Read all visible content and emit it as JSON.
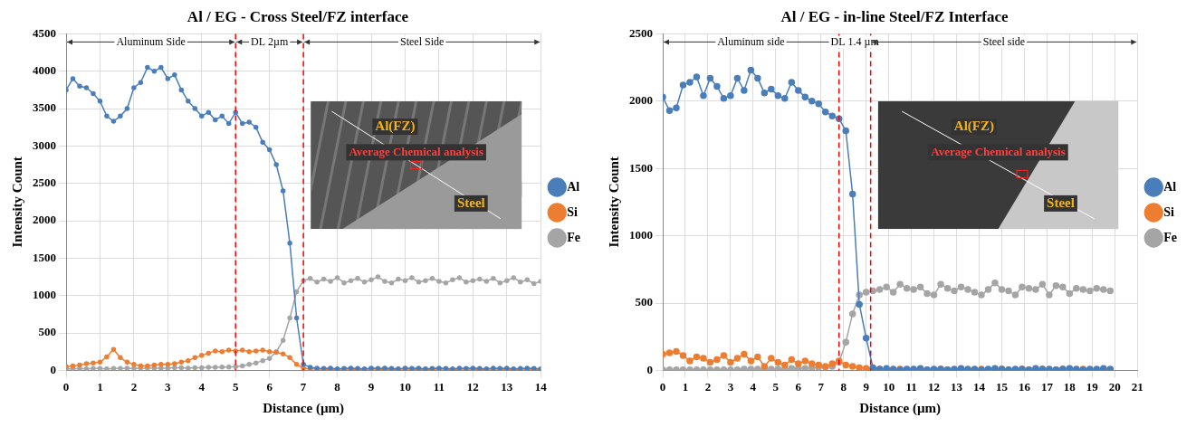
{
  "chart_data": [
    {
      "type": "line",
      "title": "Al / EG - Cross Steel/FZ interface",
      "x_label": "Distance (µm)",
      "y_label": "Intensity Count",
      "x": [
        0,
        0.2,
        0.4,
        0.6,
        0.8,
        1,
        1.2,
        1.4,
        1.6,
        1.8,
        2,
        2.2,
        2.4,
        2.6,
        2.8,
        3,
        3.2,
        3.4,
        3.6,
        3.8,
        4,
        4.2,
        4.4,
        4.6,
        4.8,
        5,
        5.2,
        5.4,
        5.6,
        5.8,
        6,
        6.2,
        6.4,
        6.6,
        6.8,
        7,
        7.2,
        7.4,
        7.6,
        7.8,
        8,
        8.2,
        8.4,
        8.6,
        8.8,
        9,
        9.2,
        9.4,
        9.6,
        9.8,
        10,
        10.2,
        10.4,
        10.6,
        10.8,
        11,
        11.2,
        11.4,
        11.6,
        11.8,
        12,
        12.2,
        12.4,
        12.6,
        12.8,
        13,
        13.2,
        13.4,
        13.6,
        13.8,
        14
      ],
      "series": [
        {
          "name": "Al",
          "color": "#4a7ebb",
          "marker": "circle",
          "values": [
            3750,
            3900,
            3800,
            3780,
            3700,
            3600,
            3400,
            3330,
            3400,
            3500,
            3780,
            3850,
            4050,
            4000,
            4050,
            3900,
            3950,
            3750,
            3600,
            3500,
            3400,
            3450,
            3350,
            3400,
            3300,
            3450,
            3300,
            3320,
            3250,
            3050,
            2950,
            2750,
            2400,
            1700,
            700,
            80,
            40,
            30,
            25,
            30,
            20,
            25,
            30,
            25,
            20,
            30,
            25,
            30,
            25,
            20,
            30,
            25,
            30,
            20,
            25,
            30,
            25,
            20,
            30,
            25,
            30,
            25,
            20,
            30,
            25,
            30,
            20,
            25,
            30,
            25,
            20
          ]
        },
        {
          "name": "Si",
          "color": "#ed7d31",
          "marker": "circle",
          "values": [
            50,
            60,
            70,
            90,
            100,
            110,
            180,
            280,
            170,
            110,
            80,
            60,
            60,
            70,
            80,
            80,
            90,
            110,
            130,
            170,
            200,
            230,
            260,
            250,
            270,
            260,
            270,
            250,
            260,
            270,
            250,
            240,
            220,
            170,
            80,
            30,
            20,
            20,
            15,
            10,
            15,
            20,
            15,
            10,
            15,
            20,
            15,
            15,
            10,
            15,
            20,
            15,
            10,
            15,
            15,
            20,
            15,
            10,
            15,
            20,
            15,
            10,
            15,
            20,
            15,
            10,
            15,
            15,
            20,
            10,
            15
          ]
        },
        {
          "name": "Fe",
          "color": "#a5a5a5",
          "marker": "circle",
          "values": [
            20,
            20,
            25,
            20,
            25,
            25,
            20,
            25,
            25,
            30,
            25,
            25,
            30,
            30,
            30,
            30,
            35,
            35,
            30,
            35,
            35,
            40,
            40,
            45,
            45,
            50,
            60,
            80,
            100,
            130,
            160,
            250,
            400,
            700,
            1050,
            1200,
            1230,
            1180,
            1220,
            1190,
            1240,
            1170,
            1200,
            1230,
            1180,
            1210,
            1250,
            1190,
            1170,
            1220,
            1200,
            1240,
            1180,
            1200,
            1230,
            1190,
            1170,
            1210,
            1240,
            1180,
            1200,
            1220,
            1190,
            1230,
            1170,
            1200,
            1240,
            1180,
            1210,
            1160,
            1190
          ]
        }
      ],
      "xlim": [
        0,
        14
      ],
      "xticks": [
        0,
        1,
        2,
        3,
        4,
        5,
        6,
        7,
        8,
        9,
        10,
        11,
        12,
        13,
        14
      ],
      "ylim": [
        0,
        4500
      ],
      "yticks": [
        0,
        500,
        1000,
        1500,
        2000,
        2500,
        3000,
        3500,
        4000,
        4500
      ],
      "grid": true,
      "legend": "right",
      "boundaries": [
        5,
        7
      ],
      "regions": [
        "Aluminum Side",
        "DL 2µm",
        "Steel Side"
      ],
      "inset_texts": [
        "Al(FZ)",
        "Average Chemical analysis",
        "Steel"
      ]
    },
    {
      "type": "line",
      "title": "Al / EG - in-line Steel/FZ Interface",
      "x_label": "Distance (µm)",
      "y_label": "Intensity Count",
      "x": [
        0,
        0.3,
        0.6,
        0.9,
        1.2,
        1.5,
        1.8,
        2.1,
        2.4,
        2.7,
        3,
        3.3,
        3.6,
        3.9,
        4.2,
        4.5,
        4.8,
        5.1,
        5.4,
        5.7,
        6,
        6.3,
        6.6,
        6.9,
        7.2,
        7.5,
        7.8,
        8.1,
        8.4,
        8.7,
        9,
        9.3,
        9.6,
        9.9,
        10.2,
        10.5,
        10.8,
        11.1,
        11.4,
        11.7,
        12,
        12.3,
        12.6,
        12.9,
        13.2,
        13.5,
        13.8,
        14.1,
        14.4,
        14.7,
        15,
        15.3,
        15.6,
        15.9,
        16.2,
        16.5,
        16.8,
        17.1,
        17.4,
        17.7,
        18,
        18.3,
        18.6,
        18.9,
        19.2,
        19.5,
        19.8
      ],
      "series": [
        {
          "name": "Al",
          "color": "#4a7ebb",
          "marker": "circle",
          "values": [
            2030,
            1930,
            1950,
            2120,
            2140,
            2180,
            2040,
            2170,
            2110,
            2020,
            2040,
            2170,
            2080,
            2230,
            2170,
            2060,
            2090,
            2040,
            2020,
            2140,
            2080,
            2030,
            2000,
            1980,
            1920,
            1890,
            1870,
            1780,
            1310,
            490,
            240,
            20,
            10,
            15,
            10,
            5,
            10,
            10,
            15,
            5,
            10,
            10,
            5,
            10,
            15,
            10,
            10,
            5,
            10,
            15,
            10,
            5,
            10,
            10,
            5,
            15,
            10,
            10,
            5,
            10,
            15,
            10,
            5,
            10,
            10,
            15,
            10
          ]
        },
        {
          "name": "Si",
          "color": "#ed7d31",
          "marker": "circle",
          "values": [
            120,
            130,
            140,
            110,
            70,
            100,
            90,
            60,
            80,
            110,
            60,
            90,
            120,
            70,
            100,
            30,
            90,
            60,
            40,
            80,
            50,
            70,
            50,
            40,
            30,
            50,
            70,
            40,
            30,
            20,
            15,
            10,
            10,
            5,
            5,
            10,
            5,
            5,
            10,
            5,
            5,
            10,
            5,
            5,
            10,
            5,
            5,
            10,
            5,
            5,
            10,
            5,
            5,
            10,
            5,
            5,
            10,
            5,
            5,
            10,
            5,
            5,
            10,
            5,
            5,
            10,
            5
          ]
        },
        {
          "name": "Fe",
          "color": "#a5a5a5",
          "marker": "circle",
          "values": [
            5,
            5,
            5,
            5,
            5,
            5,
            5,
            5,
            5,
            5,
            5,
            5,
            10,
            10,
            10,
            10,
            10,
            10,
            10,
            15,
            15,
            15,
            20,
            20,
            25,
            30,
            60,
            210,
            420,
            560,
            580,
            590,
            600,
            620,
            580,
            640,
            610,
            600,
            620,
            570,
            560,
            640,
            610,
            590,
            620,
            600,
            580,
            560,
            600,
            650,
            600,
            590,
            560,
            620,
            610,
            600,
            640,
            560,
            630,
            620,
            570,
            610,
            600,
            590,
            610,
            600,
            590
          ]
        }
      ],
      "xlim": [
        0,
        21
      ],
      "xticks": [
        0,
        1,
        2,
        3,
        4,
        5,
        6,
        7,
        8,
        9,
        10,
        11,
        12,
        13,
        14,
        15,
        16,
        17,
        18,
        19,
        20,
        21
      ],
      "ylim": [
        0,
        2500
      ],
      "yticks": [
        0,
        500,
        1000,
        1500,
        2000,
        2500
      ],
      "grid": true,
      "legend": "right",
      "boundaries": [
        7.8,
        9.2
      ],
      "regions": [
        "Aluminum side",
        "DL 1.4 µm",
        "Steel side"
      ],
      "inset_texts": [
        "Al(FZ)",
        "Average Chemical analysis",
        "Steel"
      ]
    }
  ]
}
